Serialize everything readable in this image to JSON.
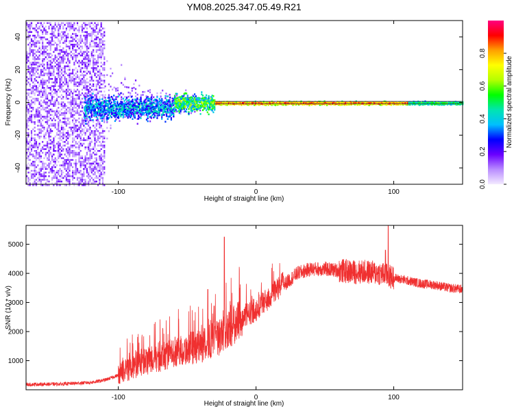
{
  "title": "YM08.2025.347.05.49.R21",
  "chart_data": [
    {
      "type": "heatmap",
      "xlabel": "Height of straight line (km)",
      "ylabel": "Frequency (Hz)",
      "xlim": [
        -167,
        150
      ],
      "ylim": [
        -50,
        50
      ],
      "xticks": [
        -100,
        0,
        100
      ],
      "yticks": [
        -40,
        -20,
        0,
        20,
        40
      ],
      "colorbar": {
        "label": "Normalized spectral amplitude",
        "range": [
          0.0,
          1.0
        ],
        "ticks": [
          0.0,
          0.2,
          0.4,
          0.6,
          0.8
        ],
        "tick_labels": [
          "0.0",
          "0.2",
          "0.4",
          "0.6",
          "0.8"
        ],
        "colors": [
          "#f3eaff",
          "#b98cff",
          "#6a00ff",
          "#0000ff",
          "#00bfff",
          "#00e5b0",
          "#00ff00",
          "#b4ff00",
          "#ffff00",
          "#ffa000",
          "#ff0000",
          "#ff0080"
        ]
      },
      "description_values": {
        "noise_region_end_km": -110,
        "line_frequency_hz": 0,
        "peak_amplitude": 1.0
      }
    },
    {
      "type": "line",
      "color": "#f03030",
      "xlabel": "Height of straight line (km)",
      "ylabel": "SNR (10 * v/v)",
      "xlim": [
        -167,
        150
      ],
      "ylim": [
        0,
        5650
      ],
      "xticks": [
        -100,
        0,
        100
      ],
      "yticks": [
        1000,
        2000,
        3000,
        4000,
        5000
      ],
      "envelope_x": [
        -167,
        -140,
        -120,
        -110,
        -100,
        -90,
        -80,
        -70,
        -60,
        -50,
        -40,
        -30,
        -20,
        -10,
        0,
        10,
        20,
        30,
        40,
        50,
        60,
        70,
        80,
        90,
        100,
        110,
        120,
        130,
        140,
        150
      ],
      "envelope_y": [
        180,
        200,
        250,
        330,
        500,
        700,
        900,
        1000,
        1200,
        1300,
        1400,
        1600,
        1900,
        2400,
        2700,
        3100,
        3600,
        4000,
        4150,
        4150,
        4100,
        4050,
        4050,
        4000,
        3850,
        3750,
        3650,
        3600,
        3500,
        3450
      ],
      "spikes": [
        {
          "x": -23,
          "y": 5250
        },
        {
          "x": -35,
          "y": 3450
        },
        {
          "x": 96,
          "y": 5650
        },
        {
          "x": 94,
          "y": 4800
        }
      ]
    }
  ]
}
